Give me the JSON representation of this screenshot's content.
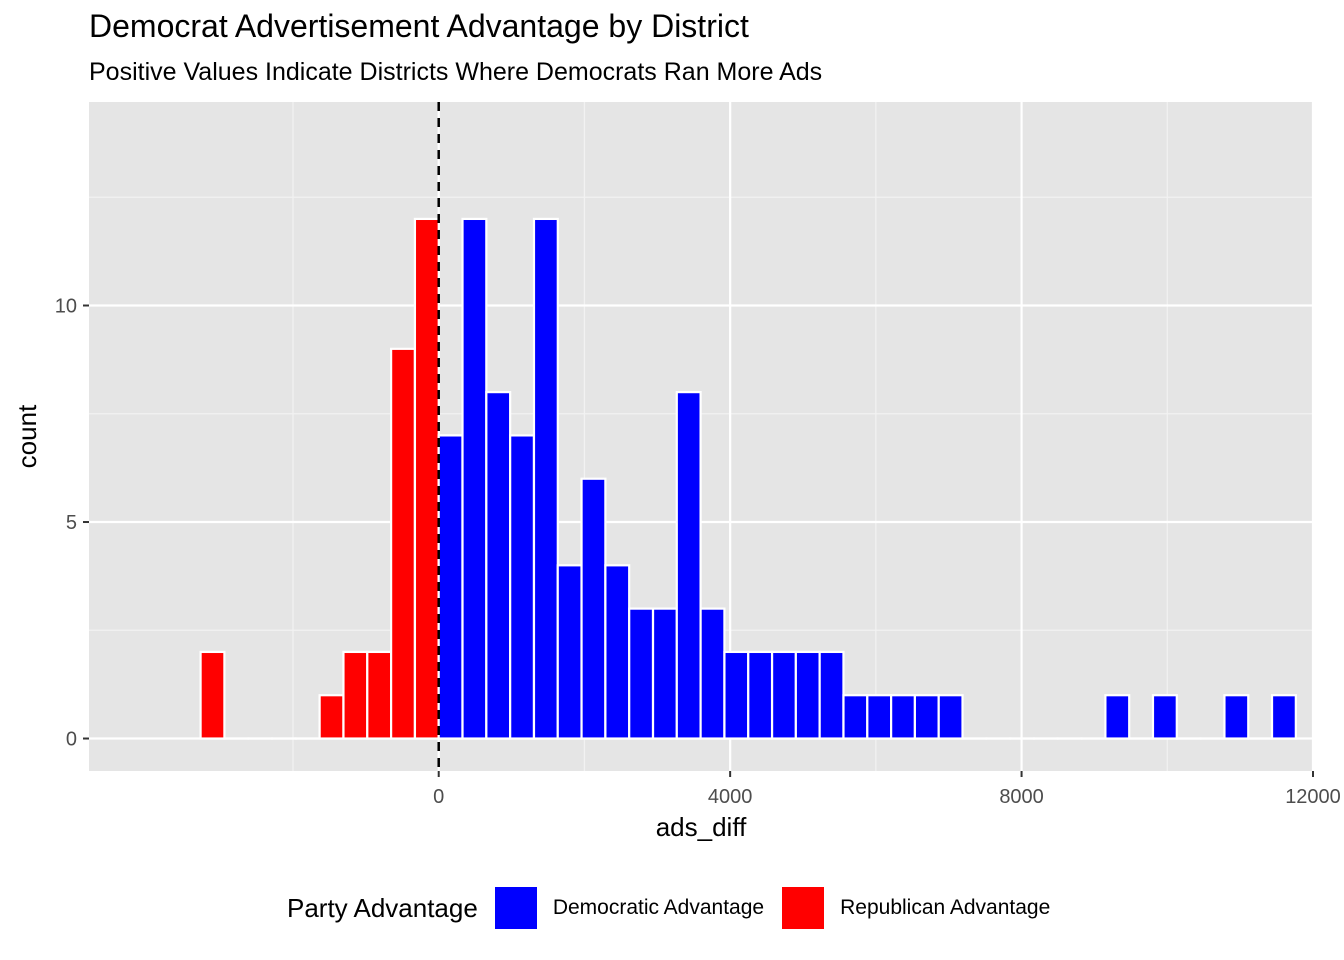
{
  "chart_data": {
    "type": "bar",
    "title": "Democrat Advertisement Advantage by District",
    "subtitle": "Positive Values Indicate Districts Where Democrats Ran More Ads",
    "xlabel": "ads_diff",
    "ylabel": "count",
    "xlim": [
      -4800,
      12000
    ],
    "ylim": [
      -0.75,
      14.7
    ],
    "x_ticks": [
      0,
      4000,
      8000,
      12000
    ],
    "x_tick_labels": [
      "0",
      "4000",
      "8000",
      "12000"
    ],
    "y_ticks": [
      0,
      5,
      10
    ],
    "y_tick_labels": [
      "0",
      "5",
      "10"
    ],
    "x_minor_ticks": [
      -2000,
      2000,
      6000,
      10000
    ],
    "y_minor_ticks": [
      2.5,
      7.5,
      12.5
    ],
    "bin_width": 326.8,
    "reference_line": {
      "x": 0,
      "style": "dashed",
      "color": "#000000"
    },
    "grid": true,
    "background": "#e5e5e5",
    "legend_placement": "bottom",
    "legend": {
      "title": "Party Advantage",
      "entries": [
        {
          "label": "Democratic Advantage",
          "color": "#0000ff"
        },
        {
          "label": "Republican Advantage",
          "color": "#ff0000"
        }
      ]
    },
    "series": [
      {
        "name": "Republican Advantage",
        "color": "#ff0000",
        "bins": [
          {
            "x": -3105,
            "count": 2
          },
          {
            "x": -2778,
            "count": 0
          },
          {
            "x": -2451,
            "count": 0
          },
          {
            "x": -2124,
            "count": 0
          },
          {
            "x": -1797,
            "count": 0
          },
          {
            "x": -1471,
            "count": 1
          },
          {
            "x": -1144,
            "count": 2
          },
          {
            "x": -817,
            "count": 2
          },
          {
            "x": -490,
            "count": 9
          },
          {
            "x": -163,
            "count": 12
          },
          {
            "x": 163,
            "count": 7
          }
        ]
      },
      {
        "name": "Democratic Advantage",
        "color": "#0000ff",
        "bins": [
          {
            "x": 163,
            "count": 7
          },
          {
            "x": 490,
            "count": 12
          },
          {
            "x": 817,
            "count": 8
          },
          {
            "x": 1144,
            "count": 7
          },
          {
            "x": 1471,
            "count": 12
          },
          {
            "x": 1797,
            "count": 4
          },
          {
            "x": 2124,
            "count": 6
          },
          {
            "x": 2451,
            "count": 4
          },
          {
            "x": 2778,
            "count": 3
          },
          {
            "x": 3105,
            "count": 3
          },
          {
            "x": 3431,
            "count": 8
          },
          {
            "x": 3758,
            "count": 3
          },
          {
            "x": 4085,
            "count": 2
          },
          {
            "x": 4412,
            "count": 2
          },
          {
            "x": 4739,
            "count": 2
          },
          {
            "x": 5065,
            "count": 2
          },
          {
            "x": 5392,
            "count": 2
          },
          {
            "x": 5719,
            "count": 1
          },
          {
            "x": 6046,
            "count": 1
          },
          {
            "x": 6373,
            "count": 1
          },
          {
            "x": 6699,
            "count": 1
          },
          {
            "x": 7026,
            "count": 1
          },
          {
            "x": 7353,
            "count": 0
          },
          {
            "x": 7680,
            "count": 0
          },
          {
            "x": 8007,
            "count": 0
          },
          {
            "x": 8333,
            "count": 0
          },
          {
            "x": 8660,
            "count": 0
          },
          {
            "x": 8987,
            "count": 0
          },
          {
            "x": 9314,
            "count": 1
          },
          {
            "x": 9641,
            "count": 0
          },
          {
            "x": 9967,
            "count": 1
          },
          {
            "x": 10294,
            "count": 0
          },
          {
            "x": 10621,
            "count": 0
          },
          {
            "x": 10948,
            "count": 1
          },
          {
            "x": 11275,
            "count": 0
          },
          {
            "x": 11601,
            "count": 1
          }
        ]
      }
    ]
  }
}
